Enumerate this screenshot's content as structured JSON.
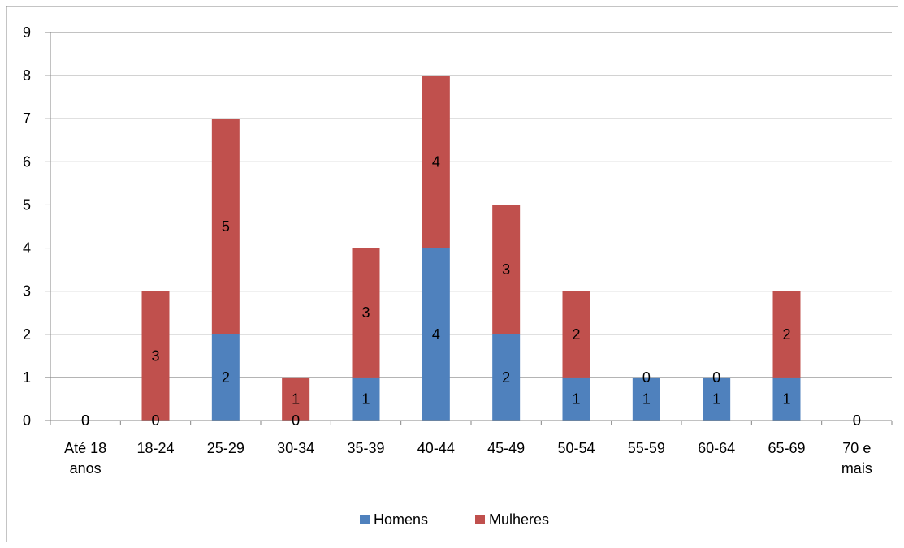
{
  "chart_data": {
    "type": "bar",
    "stacked": true,
    "categories": [
      [
        "Até 18",
        "anos"
      ],
      [
        "18-24"
      ],
      [
        "25-29"
      ],
      [
        "30-34"
      ],
      [
        "35-39"
      ],
      [
        "40-44"
      ],
      [
        "45-49"
      ],
      [
        "50-54"
      ],
      [
        "55-59"
      ],
      [
        "60-64"
      ],
      [
        "65-69"
      ],
      [
        "70 e",
        "mais"
      ]
    ],
    "series": [
      {
        "name": "Homens",
        "color": "#4f81bd",
        "values": [
          0,
          0,
          2,
          0,
          1,
          4,
          2,
          1,
          1,
          1,
          1,
          0
        ]
      },
      {
        "name": "Mulheres",
        "color": "#c0504d",
        "values": [
          0,
          3,
          5,
          1,
          3,
          4,
          3,
          2,
          0,
          0,
          2,
          0
        ]
      }
    ],
    "ylim": [
      0,
      9
    ],
    "yticks": [
      0,
      1,
      2,
      3,
      4,
      5,
      6,
      7,
      8,
      9
    ],
    "grid": true,
    "legend_position": "bottom",
    "title": "",
    "xlabel": "",
    "ylabel": ""
  }
}
